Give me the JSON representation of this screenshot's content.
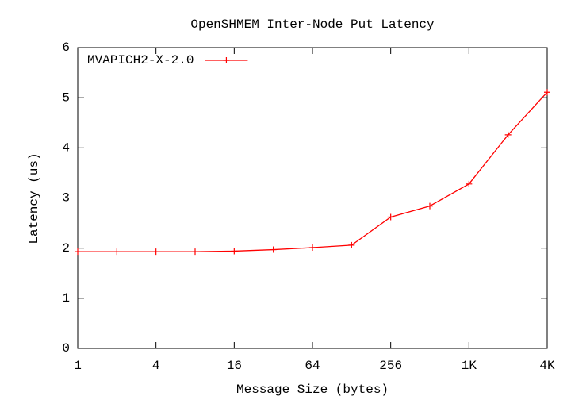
{
  "chart_data": {
    "type": "line",
    "title": "OpenSHMEM Inter-Node Put Latency",
    "xlabel": "Message Size (bytes)",
    "ylabel": "Latency (us)",
    "x": [
      1,
      2,
      4,
      8,
      16,
      32,
      64,
      128,
      256,
      512,
      1024,
      2048,
      4096
    ],
    "series": [
      {
        "name": "MVAPICH2-X-2.0",
        "color": "#ff0000",
        "values": [
          1.93,
          1.93,
          1.93,
          1.93,
          1.94,
          1.97,
          2.01,
          2.06,
          2.62,
          2.84,
          3.28,
          4.26,
          5.11
        ]
      }
    ],
    "xscale": "log2",
    "xlim": [
      1,
      4096
    ],
    "xticks": [
      1,
      4,
      16,
      64,
      256,
      {
        "value": 1024,
        "label": "1K"
      },
      {
        "value": 4096,
        "label": "4K"
      }
    ],
    "ylim": [
      0,
      6
    ],
    "yticks": [
      0,
      1,
      2,
      3,
      4,
      5,
      6
    ],
    "grid": false,
    "legend": "top-left"
  }
}
